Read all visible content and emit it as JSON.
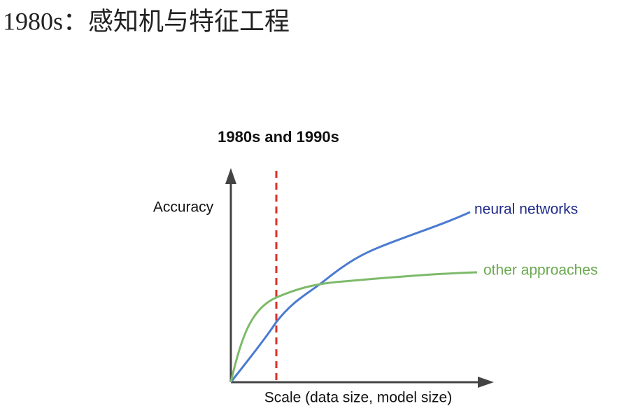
{
  "header": {
    "title": "1980s：感知机与特征工程"
  },
  "diagram": {
    "title": "1980s and 1990s",
    "y_label": "Accuracy",
    "x_label": "Scale (data size, model size)",
    "curves": [
      {
        "label": "neural networks"
      },
      {
        "label": "other approaches"
      }
    ]
  }
}
